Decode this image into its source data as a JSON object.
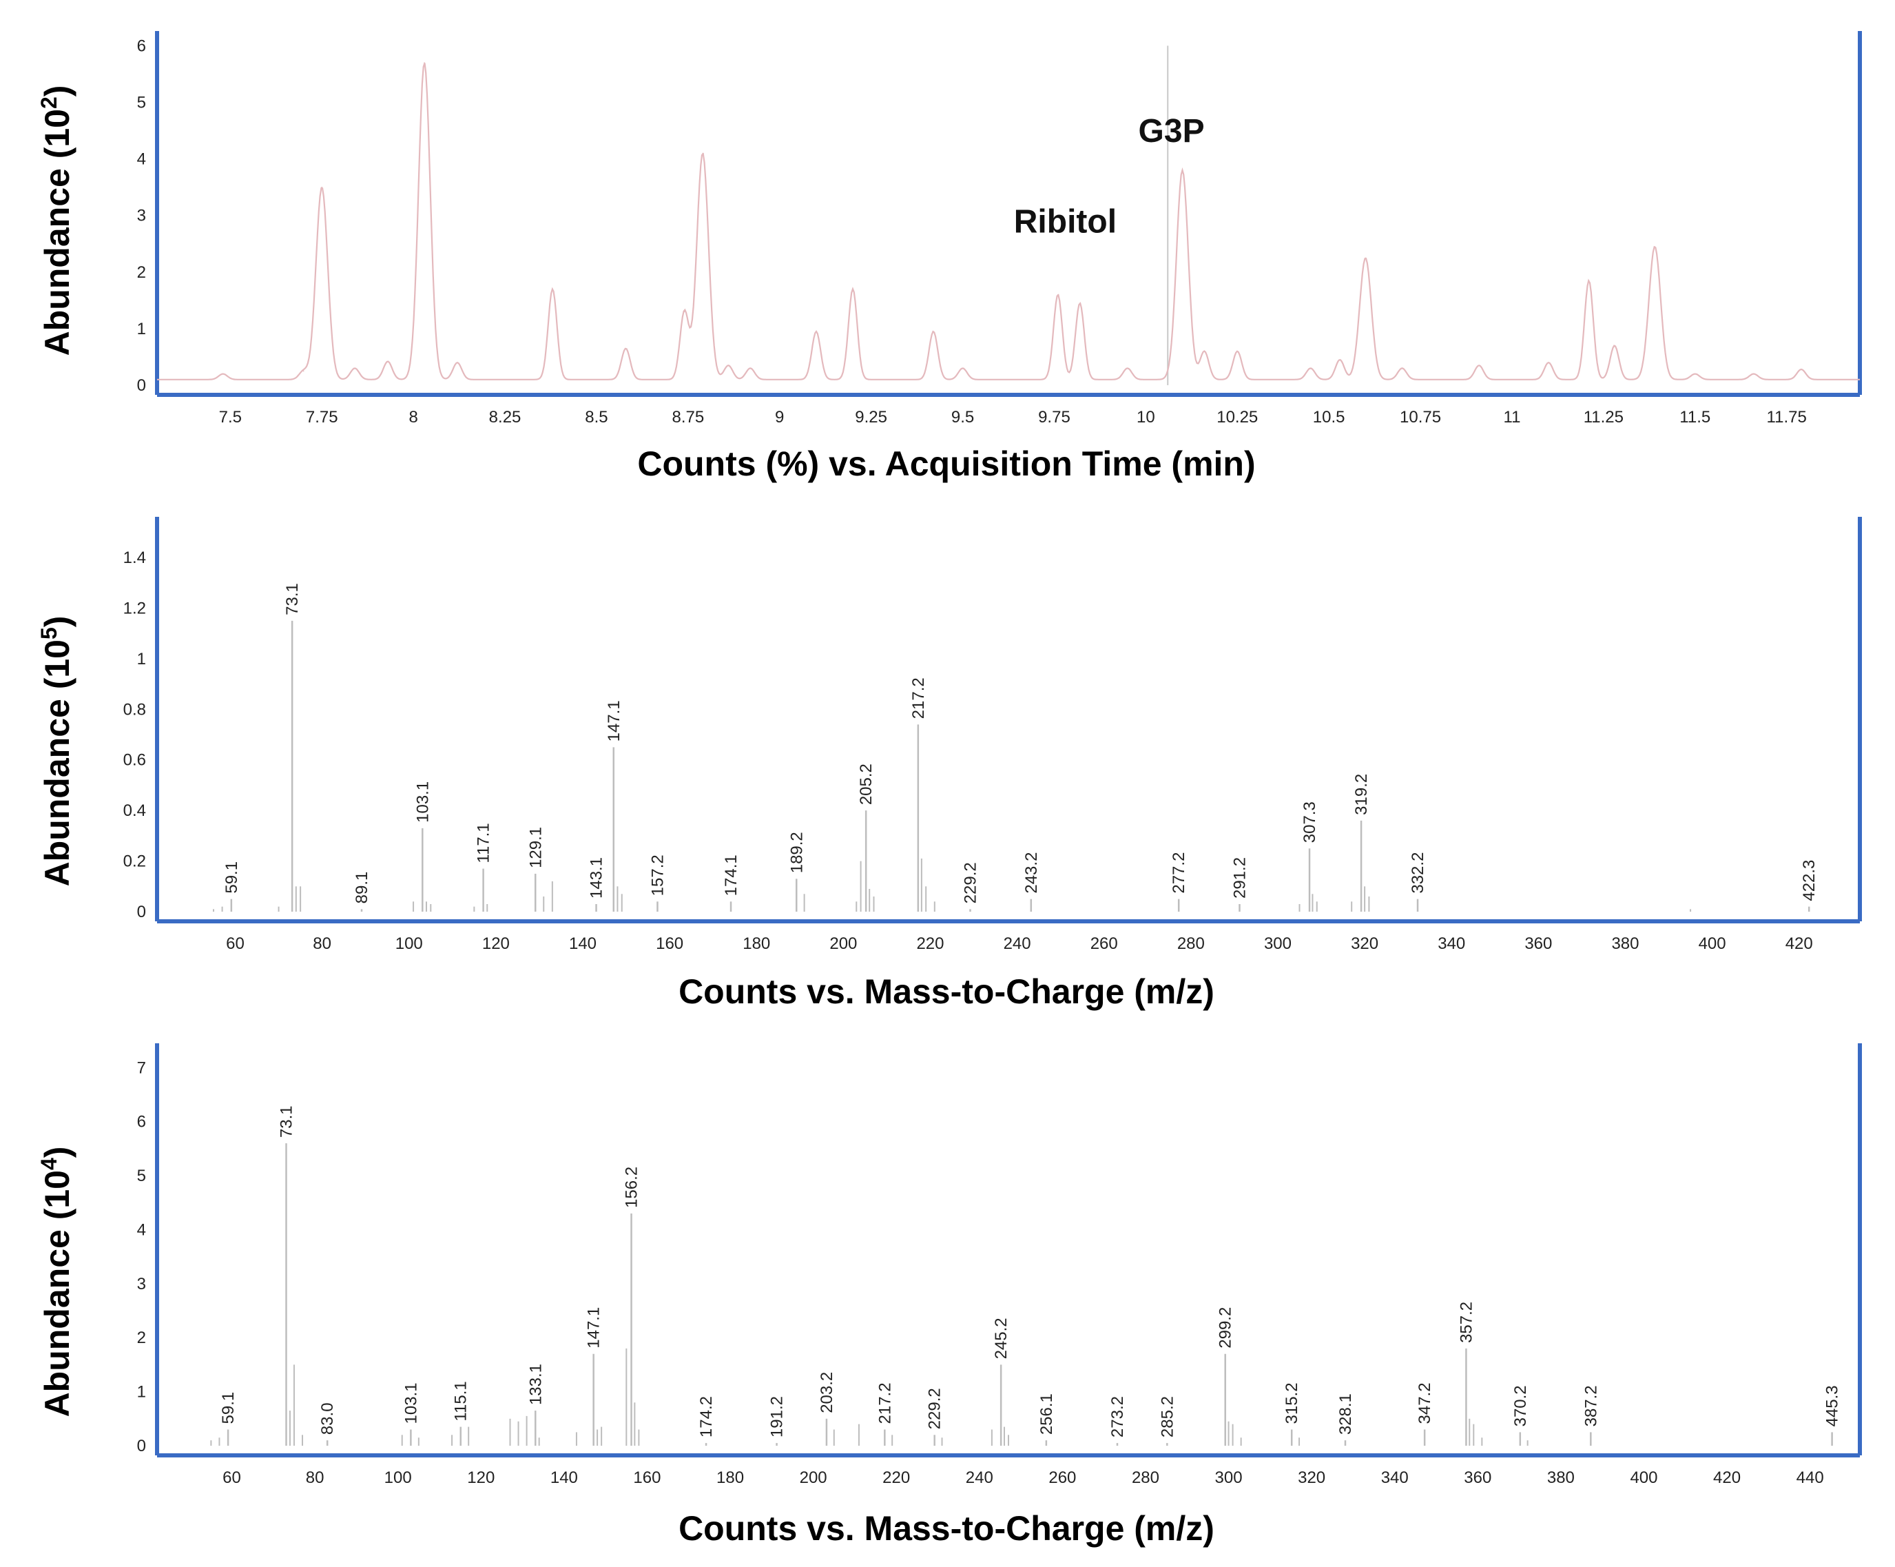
{
  "chart_data": [
    {
      "type": "line",
      "xlabel": "Counts (%) vs. Acquisition Time (min)",
      "ylabel": "Abundance (10",
      "ylabel_exp": "2",
      "xlim": [
        7.3,
        11.95
      ],
      "ylim": [
        0,
        6.2
      ],
      "xticks": [
        "7.5",
        "7.75",
        "8",
        "8.25",
        "8.5",
        "8.75",
        "9",
        "9.25",
        "9.5",
        "9.75",
        "10",
        "10.25",
        "10.5",
        "10.75",
        "11",
        "11.25",
        "11.5",
        "11.75"
      ],
      "yticks": [
        "0",
        "1",
        "2",
        "3",
        "4",
        "5",
        "6"
      ],
      "baseline": 0.1,
      "peaks": [
        {
          "x": 7.48,
          "y": 0.2
        },
        {
          "x": 7.7,
          "y": 0.25
        },
        {
          "x": 7.75,
          "y": 3.5
        },
        {
          "x": 7.84,
          "y": 0.3
        },
        {
          "x": 7.93,
          "y": 0.42
        },
        {
          "x": 8.03,
          "y": 5.7
        },
        {
          "x": 8.12,
          "y": 0.4
        },
        {
          "x": 8.38,
          "y": 1.7
        },
        {
          "x": 8.58,
          "y": 0.65
        },
        {
          "x": 8.74,
          "y": 1.3
        },
        {
          "x": 8.79,
          "y": 4.1
        },
        {
          "x": 8.86,
          "y": 0.35
        },
        {
          "x": 8.92,
          "y": 0.3
        },
        {
          "x": 9.1,
          "y": 0.95
        },
        {
          "x": 9.2,
          "y": 1.7
        },
        {
          "x": 9.42,
          "y": 0.95
        },
        {
          "x": 9.5,
          "y": 0.3
        },
        {
          "x": 9.76,
          "y": 1.6
        },
        {
          "x": 9.82,
          "y": 1.45
        },
        {
          "x": 9.95,
          "y": 0.3
        },
        {
          "x": 10.1,
          "y": 3.8
        },
        {
          "x": 10.16,
          "y": 0.6
        },
        {
          "x": 10.25,
          "y": 0.6
        },
        {
          "x": 10.45,
          "y": 0.3
        },
        {
          "x": 10.53,
          "y": 0.45
        },
        {
          "x": 10.6,
          "y": 2.25
        },
        {
          "x": 10.7,
          "y": 0.3
        },
        {
          "x": 10.91,
          "y": 0.35
        },
        {
          "x": 11.1,
          "y": 0.4
        },
        {
          "x": 11.21,
          "y": 1.85
        },
        {
          "x": 11.28,
          "y": 0.7
        },
        {
          "x": 11.39,
          "y": 2.45
        },
        {
          "x": 11.5,
          "y": 0.2
        },
        {
          "x": 11.66,
          "y": 0.2
        },
        {
          "x": 11.79,
          "y": 0.28
        }
      ],
      "marker_x": 10.06,
      "annotations": [
        {
          "text": "G3P",
          "x": 10.07,
          "y": 4.3
        },
        {
          "text": "Ribitol",
          "x": 9.78,
          "y": 2.7
        }
      ]
    },
    {
      "type": "bar",
      "xlabel": "Counts vs. Mass-to-Charge (m/z)",
      "ylabel": "Abundance (10",
      "ylabel_exp": "5",
      "xlim": [
        42,
        434
      ],
      "ylim": [
        0,
        1.55
      ],
      "xticks": [
        "60",
        "80",
        "100",
        "120",
        "140",
        "160",
        "180",
        "200",
        "220",
        "240",
        "260",
        "280",
        "300",
        "320",
        "340",
        "360",
        "380",
        "400",
        "420"
      ],
      "yticks": [
        "0",
        "0.2",
        "0.4",
        "0.6",
        "0.8",
        "1",
        "1.2",
        "1.4"
      ],
      "labeled_peaks": [
        {
          "x": 59.1,
          "y": 0.05,
          "label": "59.1"
        },
        {
          "x": 73.1,
          "y": 1.15,
          "label": "73.1"
        },
        {
          "x": 89.1,
          "y": 0.01,
          "label": "89.1"
        },
        {
          "x": 103.1,
          "y": 0.33,
          "label": "103.1"
        },
        {
          "x": 117.1,
          "y": 0.17,
          "label": "117.1"
        },
        {
          "x": 129.1,
          "y": 0.15,
          "label": "129.1"
        },
        {
          "x": 143.1,
          "y": 0.03,
          "label": "143.1"
        },
        {
          "x": 147.1,
          "y": 0.65,
          "label": "147.1"
        },
        {
          "x": 157.2,
          "y": 0.04,
          "label": "157.2"
        },
        {
          "x": 174.1,
          "y": 0.04,
          "label": "174.1"
        },
        {
          "x": 189.2,
          "y": 0.13,
          "label": "189.2"
        },
        {
          "x": 205.2,
          "y": 0.4,
          "label": "205.2"
        },
        {
          "x": 217.2,
          "y": 0.74,
          "label": "217.2"
        },
        {
          "x": 229.2,
          "y": 0.01,
          "label": "229.2"
        },
        {
          "x": 243.2,
          "y": 0.05,
          "label": "243.2"
        },
        {
          "x": 277.2,
          "y": 0.05,
          "label": "277.2"
        },
        {
          "x": 291.2,
          "y": 0.03,
          "label": "291.2"
        },
        {
          "x": 307.3,
          "y": 0.25,
          "label": "307.3"
        },
        {
          "x": 319.2,
          "y": 0.36,
          "label": "319.2"
        },
        {
          "x": 332.2,
          "y": 0.05,
          "label": "332.2"
        },
        {
          "x": 422.3,
          "y": 0.02,
          "label": "422.3"
        }
      ],
      "minor_peaks": [
        {
          "x": 55,
          "y": 0.01
        },
        {
          "x": 57,
          "y": 0.02
        },
        {
          "x": 70,
          "y": 0.02
        },
        {
          "x": 74,
          "y": 0.1
        },
        {
          "x": 75,
          "y": 0.1
        },
        {
          "x": 101,
          "y": 0.04
        },
        {
          "x": 104,
          "y": 0.04
        },
        {
          "x": 105,
          "y": 0.03
        },
        {
          "x": 115,
          "y": 0.02
        },
        {
          "x": 118,
          "y": 0.03
        },
        {
          "x": 131,
          "y": 0.06
        },
        {
          "x": 133,
          "y": 0.12
        },
        {
          "x": 148,
          "y": 0.1
        },
        {
          "x": 149,
          "y": 0.07
        },
        {
          "x": 191,
          "y": 0.07
        },
        {
          "x": 203,
          "y": 0.04
        },
        {
          "x": 204,
          "y": 0.2
        },
        {
          "x": 206,
          "y": 0.09
        },
        {
          "x": 207,
          "y": 0.06
        },
        {
          "x": 218,
          "y": 0.21
        },
        {
          "x": 219,
          "y": 0.1
        },
        {
          "x": 221,
          "y": 0.04
        },
        {
          "x": 305,
          "y": 0.03
        },
        {
          "x": 308,
          "y": 0.07
        },
        {
          "x": 309,
          "y": 0.04
        },
        {
          "x": 317,
          "y": 0.04
        },
        {
          "x": 320,
          "y": 0.1
        },
        {
          "x": 321,
          "y": 0.06
        },
        {
          "x": 395,
          "y": 0.01
        }
      ]
    },
    {
      "type": "bar",
      "xlabel": "Counts vs. Mass-to-Charge (m/z)",
      "ylabel": "Abundance (10",
      "ylabel_exp": "4",
      "xlim": [
        42,
        452
      ],
      "ylim": [
        0,
        7.4
      ],
      "xticks": [
        "60",
        "80",
        "100",
        "120",
        "140",
        "160",
        "180",
        "200",
        "220",
        "240",
        "260",
        "280",
        "300",
        "320",
        "340",
        "360",
        "380",
        "400",
        "420",
        "440"
      ],
      "yticks": [
        "0",
        "1",
        "2",
        "3",
        "4",
        "5",
        "6",
        "7"
      ],
      "labeled_peaks": [
        {
          "x": 59.1,
          "y": 0.3,
          "label": "59.1"
        },
        {
          "x": 73.1,
          "y": 5.6,
          "label": "73.1"
        },
        {
          "x": 83.0,
          "y": 0.1,
          "label": "83.0"
        },
        {
          "x": 103.1,
          "y": 0.3,
          "label": "103.1"
        },
        {
          "x": 115.1,
          "y": 0.35,
          "label": "115.1"
        },
        {
          "x": 133.1,
          "y": 0.65,
          "label": "133.1"
        },
        {
          "x": 147.1,
          "y": 1.7,
          "label": "147.1"
        },
        {
          "x": 156.2,
          "y": 4.3,
          "label": "156.2"
        },
        {
          "x": 174.2,
          "y": 0.05,
          "label": "174.2"
        },
        {
          "x": 191.2,
          "y": 0.05,
          "label": "191.2"
        },
        {
          "x": 203.2,
          "y": 0.5,
          "label": "203.2"
        },
        {
          "x": 217.2,
          "y": 0.3,
          "label": "217.2"
        },
        {
          "x": 229.2,
          "y": 0.2,
          "label": "229.2"
        },
        {
          "x": 245.2,
          "y": 1.5,
          "label": "245.2"
        },
        {
          "x": 256.1,
          "y": 0.1,
          "label": "256.1"
        },
        {
          "x": 273.2,
          "y": 0.05,
          "label": "273.2"
        },
        {
          "x": 285.2,
          "y": 0.05,
          "label": "285.2"
        },
        {
          "x": 299.2,
          "y": 1.7,
          "label": "299.2"
        },
        {
          "x": 315.2,
          "y": 0.3,
          "label": "315.2"
        },
        {
          "x": 328.1,
          "y": 0.1,
          "label": "328.1"
        },
        {
          "x": 347.2,
          "y": 0.3,
          "label": "347.2"
        },
        {
          "x": 357.2,
          "y": 1.8,
          "label": "357.2"
        },
        {
          "x": 370.2,
          "y": 0.25,
          "label": "370.2"
        },
        {
          "x": 387.2,
          "y": 0.25,
          "label": "387.2"
        },
        {
          "x": 445.3,
          "y": 0.25,
          "label": "445.3"
        }
      ],
      "minor_peaks": [
        {
          "x": 55,
          "y": 0.1
        },
        {
          "x": 57,
          "y": 0.15
        },
        {
          "x": 74,
          "y": 0.65
        },
        {
          "x": 75,
          "y": 1.5
        },
        {
          "x": 77,
          "y": 0.2
        },
        {
          "x": 101,
          "y": 0.2
        },
        {
          "x": 105,
          "y": 0.15
        },
        {
          "x": 113,
          "y": 0.2
        },
        {
          "x": 117,
          "y": 0.35
        },
        {
          "x": 127,
          "y": 0.5
        },
        {
          "x": 129,
          "y": 0.45
        },
        {
          "x": 131,
          "y": 0.55
        },
        {
          "x": 134,
          "y": 0.15
        },
        {
          "x": 143,
          "y": 0.25
        },
        {
          "x": 148,
          "y": 0.3
        },
        {
          "x": 149,
          "y": 0.35
        },
        {
          "x": 155,
          "y": 1.8
        },
        {
          "x": 157,
          "y": 0.8
        },
        {
          "x": 158,
          "y": 0.3
        },
        {
          "x": 205,
          "y": 0.3
        },
        {
          "x": 211,
          "y": 0.4
        },
        {
          "x": 219,
          "y": 0.2
        },
        {
          "x": 231,
          "y": 0.15
        },
        {
          "x": 243,
          "y": 0.3
        },
        {
          "x": 246,
          "y": 0.35
        },
        {
          "x": 247,
          "y": 0.2
        },
        {
          "x": 300,
          "y": 0.45
        },
        {
          "x": 301,
          "y": 0.4
        },
        {
          "x": 303,
          "y": 0.15
        },
        {
          "x": 317,
          "y": 0.15
        },
        {
          "x": 358,
          "y": 0.5
        },
        {
          "x": 359,
          "y": 0.4
        },
        {
          "x": 361,
          "y": 0.15
        },
        {
          "x": 372,
          "y": 0.1
        }
      ]
    }
  ]
}
